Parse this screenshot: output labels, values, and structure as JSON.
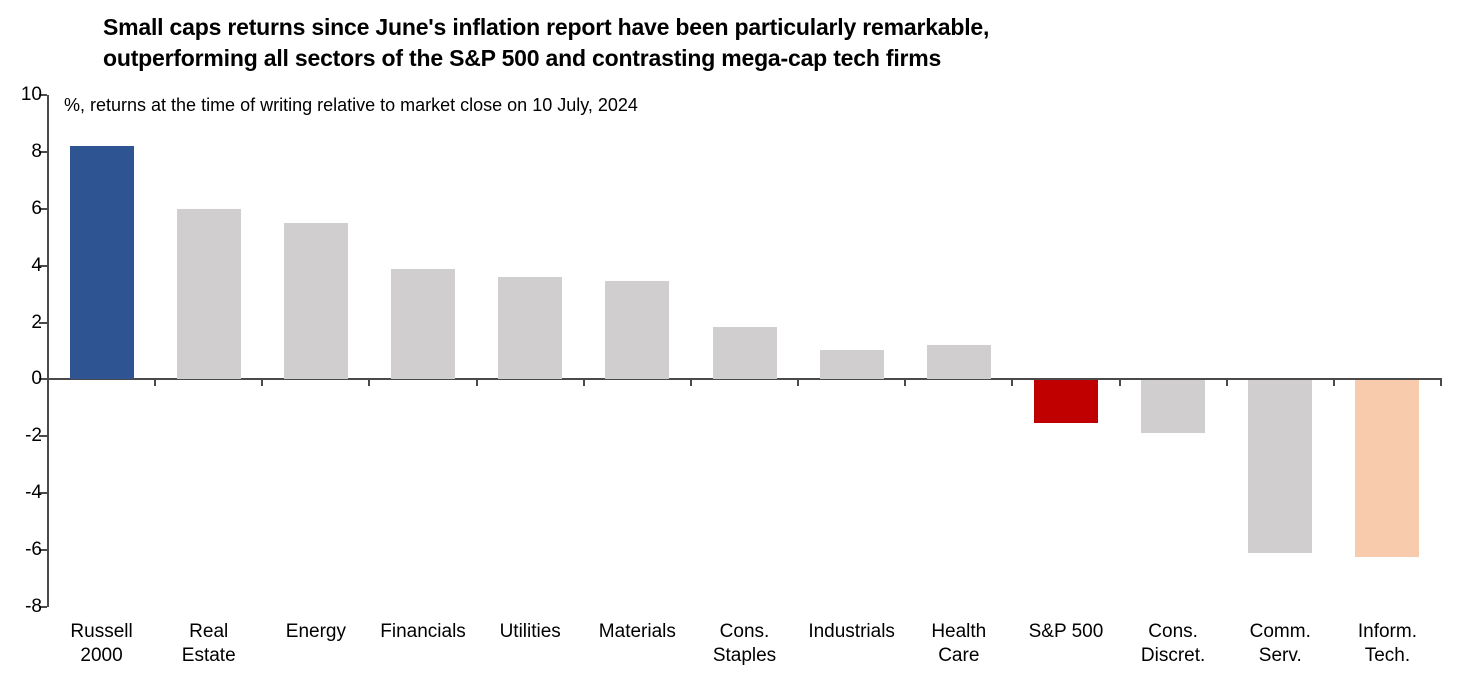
{
  "title": {
    "line1": "Small caps returns since June's inflation report have been particularly remarkable,",
    "line2": "outperforming all sectors of the S&P 500 and contrasting mega-cap tech firms"
  },
  "chart_data": {
    "type": "bar",
    "title": "Small caps returns since June's inflation report have been particularly remarkable, outperforming all sectors of the S&P 500 and contrasting mega-cap tech firms",
    "subtitle": "%, returns at the time of writing relative to market close on 10 July, 2024",
    "categories": [
      "Russell 2000",
      "Real Estate",
      "Energy",
      "Financials",
      "Utilities",
      "Materials",
      "Cons. Staples",
      "Industrials",
      "Health Care",
      "S&P 500",
      "Cons. Discret.",
      "Comm. Serv.",
      "Inform. Tech."
    ],
    "category_label_lines": [
      [
        "Russell",
        "2000"
      ],
      [
        "Real",
        "Estate"
      ],
      [
        "Energy"
      ],
      [
        "Financials"
      ],
      [
        "Utilities"
      ],
      [
        "Materials"
      ],
      [
        "Cons.",
        "Staples"
      ],
      [
        "Industrials"
      ],
      [
        "Health",
        "Care"
      ],
      [
        "S&P 500"
      ],
      [
        "Cons.",
        "Discret."
      ],
      [
        "Comm.",
        "Serv."
      ],
      [
        "Inform.",
        "Tech."
      ]
    ],
    "values": [
      8.2,
      6.0,
      5.5,
      3.9,
      3.6,
      3.45,
      1.85,
      1.05,
      1.2,
      -1.5,
      -1.85,
      -6.05,
      -6.2
    ],
    "bar_colors": [
      "#2F5492",
      "#D0CECE",
      "#D0CECE",
      "#D0CECE",
      "#D0CECE",
      "#D0CECE",
      "#D0CECE",
      "#D0CECE",
      "#D0CECE",
      "#C00000",
      "#D0CECE",
      "#D0CECE",
      "#F8CBAD"
    ],
    "color_legend": {
      "russell_2000_highlight": "#2F5492",
      "sp500_highlight": "#C00000",
      "inform_tech_highlight": "#F8CBAD",
      "sector_default": "#D0CECE"
    },
    "xlabel": "",
    "ylabel": "",
    "ylim": [
      -8,
      10
    ],
    "yticks": [
      10,
      8,
      6,
      4,
      2,
      0,
      -2,
      -4,
      -6,
      -8
    ],
    "grid": false,
    "legend_position": "none"
  }
}
